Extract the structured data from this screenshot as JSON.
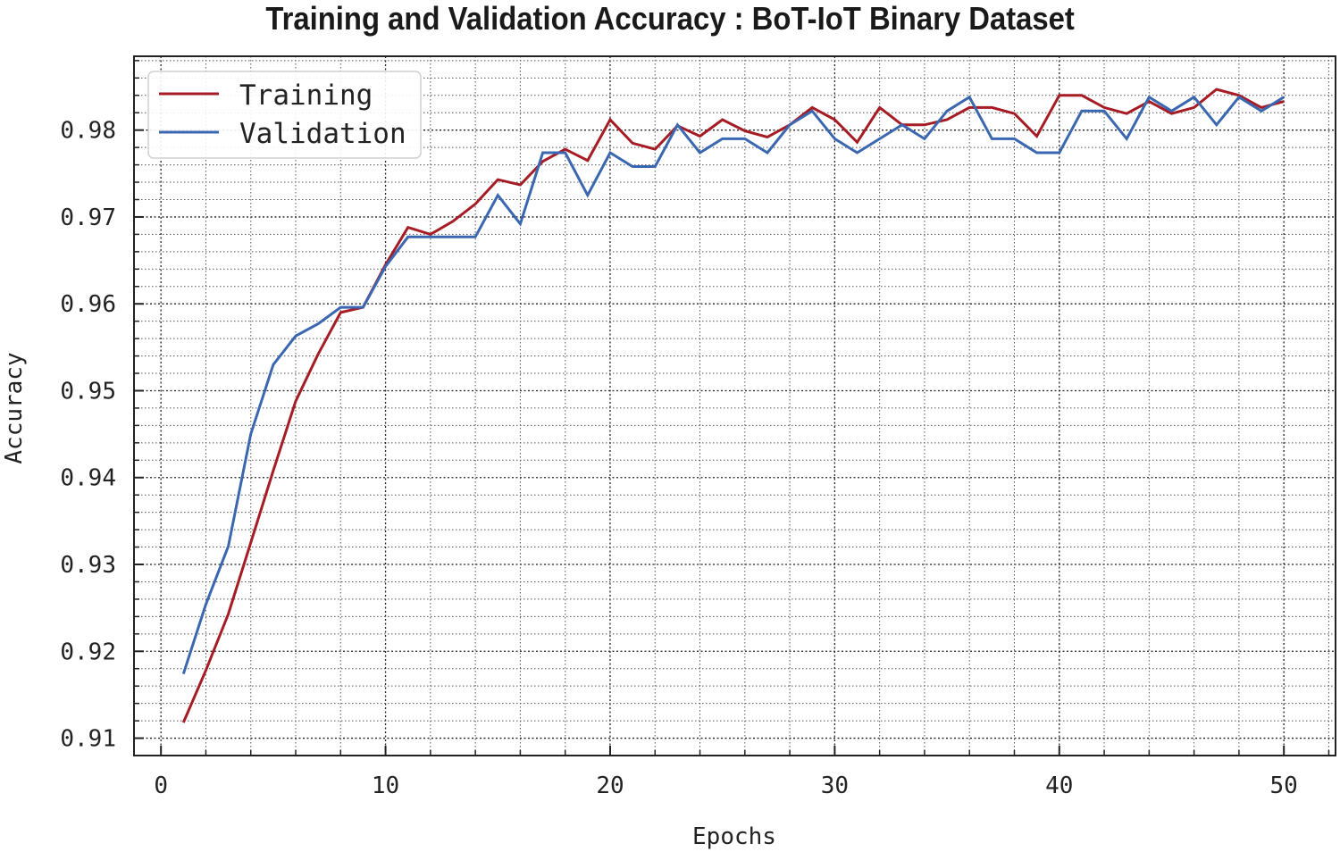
{
  "chart_data": {
    "type": "line",
    "title": "Training and Validation Accuracy : BoT-IoT Binary Dataset",
    "xlabel": "Epochs",
    "ylabel": "Accuracy",
    "xlim": [
      -1.2,
      52.3
    ],
    "ylim": [
      0.908,
      0.9885
    ],
    "xticks": [
      0,
      10,
      20,
      30,
      40,
      50
    ],
    "yticks": [
      0.91,
      0.92,
      0.93,
      0.94,
      0.95,
      0.96,
      0.97,
      0.98
    ],
    "ytick_labels": [
      "0.91",
      "0.92",
      "0.93",
      "0.94",
      "0.95",
      "0.96",
      "0.97",
      "0.98"
    ],
    "grid": "major-and-minor-dotted",
    "legend_position": "top-left",
    "x": [
      1,
      2,
      3,
      4,
      5,
      6,
      7,
      8,
      9,
      10,
      11,
      12,
      13,
      14,
      15,
      16,
      17,
      18,
      19,
      20,
      21,
      22,
      23,
      24,
      25,
      26,
      27,
      28,
      29,
      30,
      31,
      32,
      33,
      34,
      35,
      36,
      37,
      38,
      39,
      40,
      41,
      42,
      43,
      44,
      45,
      46,
      47,
      48,
      49,
      50
    ],
    "series": [
      {
        "name": "Training",
        "color": "#a51c24",
        "values": [
          0.9118,
          0.9178,
          0.9243,
          0.9325,
          0.9408,
          0.9488,
          0.9542,
          0.959,
          0.9596,
          0.9645,
          0.9688,
          0.968,
          0.9695,
          0.9715,
          0.9743,
          0.9737,
          0.9764,
          0.9778,
          0.9765,
          0.9812,
          0.9785,
          0.9778,
          0.9805,
          0.9793,
          0.9812,
          0.9799,
          0.9792,
          0.9806,
          0.9826,
          0.9812,
          0.9786,
          0.9826,
          0.9806,
          0.9806,
          0.9812,
          0.9826,
          0.9826,
          0.9819,
          0.9793,
          0.984,
          0.984,
          0.9826,
          0.9819,
          0.9833,
          0.9819,
          0.9826,
          0.9847,
          0.984,
          0.9826,
          0.9833
        ]
      },
      {
        "name": "Validation",
        "color": "#3a67b0",
        "values": [
          0.9174,
          0.9254,
          0.9321,
          0.945,
          0.953,
          0.9563,
          0.9577,
          0.9596,
          0.9596,
          0.9643,
          0.9677,
          0.9677,
          0.9677,
          0.9677,
          0.9725,
          0.9692,
          0.9774,
          0.9774,
          0.9725,
          0.9774,
          0.9758,
          0.9758,
          0.9806,
          0.9774,
          0.979,
          0.979,
          0.9774,
          0.9806,
          0.9822,
          0.979,
          0.9774,
          0.979,
          0.9806,
          0.979,
          0.9822,
          0.9838,
          0.979,
          0.979,
          0.9774,
          0.9774,
          0.9822,
          0.9822,
          0.979,
          0.9838,
          0.9822,
          0.9838,
          0.9806,
          0.9838,
          0.9822,
          0.9838
        ]
      }
    ]
  }
}
